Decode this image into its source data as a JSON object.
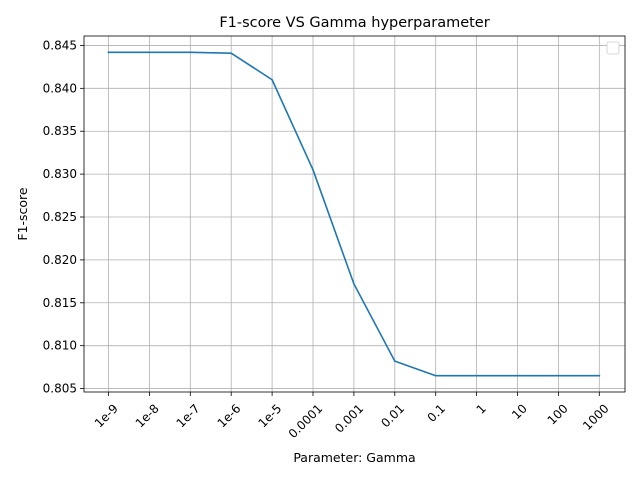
{
  "chart_data": {
    "type": "line",
    "title": "F1-score VS Gamma hyperparameter",
    "xlabel": "Parameter: Gamma",
    "ylabel": "F1-score",
    "categories": [
      "1e-9",
      "1e-8",
      "1e-7",
      "1e-6",
      "1e-5",
      "0.0001",
      "0.001",
      "0.01",
      "0.1",
      "1",
      "10",
      "100",
      "1000"
    ],
    "series": [
      {
        "values": [
          0.8442,
          0.8442,
          0.8442,
          0.8441,
          0.841,
          0.8305,
          0.8172,
          0.8082,
          0.8065,
          0.8065,
          0.8065,
          0.8065,
          0.8065
        ]
      }
    ],
    "yticks": [
      "0.805",
      "0.810",
      "0.815",
      "0.820",
      "0.825",
      "0.830",
      "0.835",
      "0.840",
      "0.845"
    ],
    "ytick_values": [
      0.805,
      0.81,
      0.815,
      0.82,
      0.825,
      0.83,
      0.835,
      0.84,
      0.845
    ],
    "ylim": [
      0.8046,
      0.8461
    ],
    "x_rotation_deg": -45,
    "grid": true,
    "legend": "top-right (empty)",
    "line_color": "#1f77b4"
  }
}
